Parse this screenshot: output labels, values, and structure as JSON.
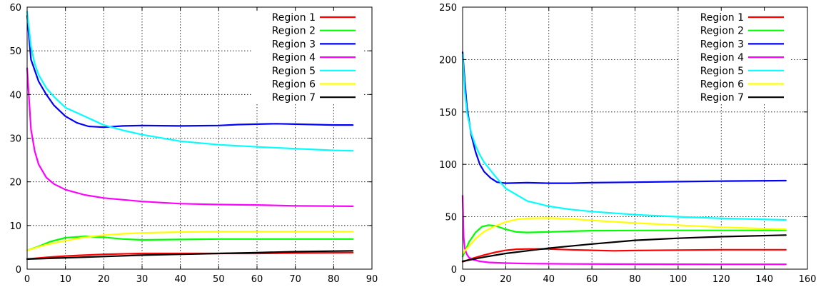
{
  "chart_data": [
    {
      "type": "line",
      "xlim": [
        0,
        90
      ],
      "ylim": [
        0,
        60
      ],
      "xticks": [
        0,
        10,
        20,
        30,
        40,
        50,
        60,
        70,
        80,
        90
      ],
      "yticks": [
        0,
        10,
        20,
        30,
        40,
        50,
        60
      ],
      "grid": true,
      "legend_position": "top-right",
      "series": [
        {
          "name": "Region 1",
          "color": "#ff0000",
          "x": [
            0,
            5,
            10,
            15,
            20,
            30,
            40,
            50,
            60,
            70,
            85
          ],
          "y": [
            2.3,
            2.7,
            3.0,
            3.2,
            3.4,
            3.6,
            3.6,
            3.6,
            3.6,
            3.7,
            3.8
          ]
        },
        {
          "name": "Region 2",
          "color": "#00ff00",
          "x": [
            0,
            3,
            6,
            10,
            15,
            20,
            25,
            30,
            40,
            50,
            60,
            70,
            85
          ],
          "y": [
            4.3,
            5.2,
            6.3,
            7.2,
            7.5,
            7.3,
            6.9,
            6.7,
            6.8,
            6.9,
            6.9,
            6.9,
            6.9
          ]
        },
        {
          "name": "Region 3",
          "color": "#0000ff",
          "x": [
            0,
            1,
            3,
            5,
            7,
            10,
            13,
            16,
            20,
            25,
            30,
            40,
            50,
            55,
            60,
            65,
            70,
            80,
            85
          ],
          "y": [
            58,
            48,
            43,
            40,
            37.5,
            35,
            33.5,
            32.7,
            32.5,
            32.8,
            32.9,
            32.8,
            32.9,
            33.1,
            33.2,
            33.3,
            33.2,
            33.0,
            33.0
          ]
        },
        {
          "name": "Region 4",
          "color": "#ff00ff",
          "x": [
            0,
            1,
            2,
            3,
            5,
            7,
            10,
            15,
            20,
            30,
            40,
            50,
            60,
            70,
            85
          ],
          "y": [
            46,
            32,
            27,
            24,
            21,
            19.5,
            18.2,
            17,
            16.3,
            15.5,
            15.0,
            14.8,
            14.7,
            14.5,
            14.4
          ]
        },
        {
          "name": "Region 5",
          "color": "#00ffff",
          "x": [
            0,
            1,
            2,
            3,
            5,
            7,
            10,
            15,
            20,
            25,
            30,
            40,
            50,
            60,
            70,
            80,
            85
          ],
          "y": [
            59,
            51,
            47,
            44.5,
            41.5,
            39.5,
            37,
            35,
            33,
            31.8,
            30.8,
            29.3,
            28.5,
            28,
            27.6,
            27.2,
            27.1
          ]
        },
        {
          "name": "Region 6",
          "color": "#ffff00",
          "x": [
            0,
            5,
            10,
            15,
            20,
            25,
            30,
            40,
            50,
            60,
            70,
            85
          ],
          "y": [
            4.3,
            5.6,
            6.5,
            7.3,
            7.8,
            8.1,
            8.3,
            8.5,
            8.6,
            8.6,
            8.6,
            8.6
          ]
        },
        {
          "name": "Region 7",
          "color": "#000000",
          "x": [
            0,
            10,
            20,
            30,
            40,
            50,
            60,
            70,
            85
          ],
          "y": [
            2.3,
            2.6,
            2.9,
            3.2,
            3.4,
            3.6,
            3.8,
            4.0,
            4.2
          ]
        }
      ]
    },
    {
      "type": "line",
      "xlim": [
        0,
        160
      ],
      "ylim": [
        0,
        250
      ],
      "xticks": [
        0,
        20,
        40,
        60,
        80,
        100,
        120,
        140,
        160
      ],
      "yticks": [
        0,
        50,
        100,
        150,
        200,
        250
      ],
      "grid": true,
      "legend_position": "top-right",
      "series": [
        {
          "name": "Region 1",
          "color": "#ff0000",
          "x": [
            0,
            5,
            10,
            15,
            20,
            25,
            30,
            40,
            50,
            60,
            70,
            80,
            100,
            120,
            150
          ],
          "y": [
            7,
            10.5,
            13.5,
            16,
            18,
            19,
            19.3,
            19.2,
            18.5,
            18,
            17.5,
            17.8,
            18.2,
            18.5,
            18.5
          ]
        },
        {
          "name": "Region 2",
          "color": "#00ff00",
          "x": [
            0,
            3,
            6,
            9,
            12,
            15,
            20,
            25,
            30,
            40,
            50,
            60,
            80,
            100,
            120,
            150
          ],
          "y": [
            12,
            26,
            35,
            40.5,
            42,
            41.5,
            38,
            35.5,
            35,
            35.5,
            36.2,
            36.7,
            36.9,
            37,
            37,
            37
          ]
        },
        {
          "name": "Region 3",
          "color": "#0000ff",
          "x": [
            0,
            1,
            2,
            4,
            6,
            8,
            10,
            13,
            16,
            20,
            30,
            40,
            50,
            60,
            80,
            100,
            120,
            150
          ],
          "y": [
            207,
            180,
            155,
            128,
            112,
            100,
            93,
            87,
            83,
            82,
            82.5,
            82,
            82,
            82.5,
            83,
            83.5,
            84,
            84.5
          ]
        },
        {
          "name": "Region 4",
          "color": "#ff00ff",
          "x": [
            0,
            0.5,
            1,
            2,
            3,
            5,
            8,
            12,
            20,
            30,
            50,
            80,
            100,
            120,
            150
          ],
          "y": [
            70,
            30,
            20,
            14,
            11,
            9,
            7.5,
            6.5,
            5.8,
            5.3,
            5,
            4.8,
            4.7,
            4.6,
            4.6
          ]
        },
        {
          "name": "Region 5",
          "color": "#00ffff",
          "x": [
            0,
            1,
            2,
            4,
            6,
            8,
            10,
            15,
            20,
            30,
            40,
            50,
            60,
            80,
            100,
            120,
            150
          ],
          "y": [
            205,
            170,
            150,
            130,
            118,
            109,
            102,
            89,
            77,
            65,
            60,
            57,
            55,
            52,
            50,
            48.5,
            47
          ]
        },
        {
          "name": "Region 6",
          "color": "#ffff00",
          "x": [
            0,
            3,
            6,
            10,
            15,
            20,
            25,
            30,
            40,
            50,
            60,
            80,
            100,
            120,
            150
          ],
          "y": [
            15,
            22,
            29,
            36,
            41,
            45,
            47.5,
            48.5,
            48.8,
            48,
            46.5,
            44,
            42,
            40,
            38
          ]
        },
        {
          "name": "Region 7",
          "color": "#000000",
          "x": [
            0,
            5,
            10,
            20,
            30,
            40,
            50,
            60,
            80,
            100,
            120,
            150
          ],
          "y": [
            7.5,
            9.5,
            11.5,
            15,
            17.5,
            20,
            22,
            24,
            27.5,
            29.5,
            31,
            32.5
          ]
        }
      ]
    }
  ]
}
